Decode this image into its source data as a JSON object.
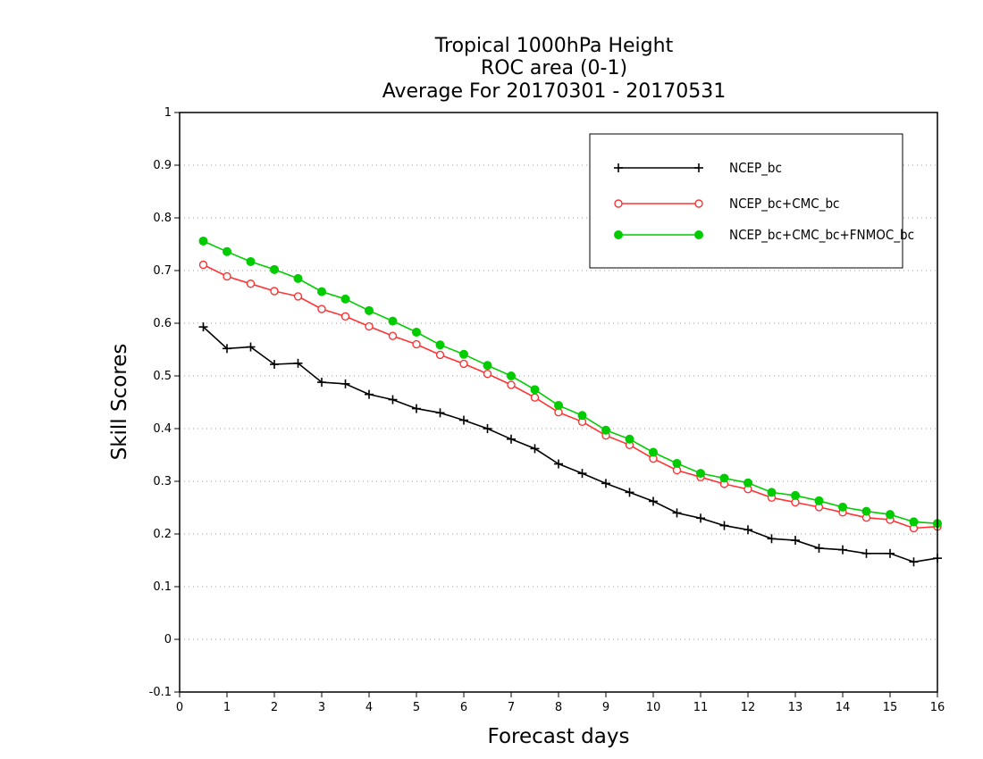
{
  "chart_data": {
    "type": "line",
    "title_lines": [
      "Tropical 1000hPa Height",
      "ROC area (0-1)",
      "Average For 20170301 - 20170531"
    ],
    "xlabel": "Forecast days",
    "ylabel": "Skill Scores",
    "xlim": [
      0,
      16
    ],
    "ylim": [
      -0.1,
      1
    ],
    "x_ticks": [
      0,
      1,
      2,
      3,
      4,
      5,
      6,
      7,
      8,
      9,
      10,
      11,
      12,
      13,
      14,
      15,
      16
    ],
    "y_ticks": [
      -0.1,
      0,
      0.1,
      0.2,
      0.3,
      0.4,
      0.5,
      0.6,
      0.7,
      0.8,
      0.9,
      1
    ],
    "y_tick_labels": [
      "-0.1",
      "0",
      "0.1",
      "0.2",
      "0.3",
      "0.4",
      "0.5",
      "0.6",
      "0.7",
      "0.8",
      "0.9",
      "1"
    ],
    "grid": "horizontal dotted",
    "legend_position": "top-right",
    "x": [
      0.5,
      1,
      1.5,
      2,
      2.5,
      3,
      3.5,
      4,
      4.5,
      5,
      5.5,
      6,
      6.5,
      7,
      7.5,
      8,
      8.5,
      9,
      9.5,
      10,
      10.5,
      11,
      11.5,
      12,
      12.5,
      13,
      13.5,
      14,
      14.5,
      15,
      15.5,
      16
    ],
    "series": [
      {
        "name": "NCEP_bc",
        "color": "#000000",
        "marker": "plus",
        "values": [
          0.593,
          0.552,
          0.555,
          0.522,
          0.524,
          0.488,
          0.485,
          0.465,
          0.455,
          0.438,
          0.43,
          0.416,
          0.4,
          0.38,
          0.362,
          0.333,
          0.315,
          0.296,
          0.279,
          0.262,
          0.24,
          0.23,
          0.216,
          0.208,
          0.191,
          0.188,
          0.173,
          0.17,
          0.163,
          0.163,
          0.147,
          0.154
        ]
      },
      {
        "name": "NCEP_bc+CMC_bc",
        "color": "#ff3333",
        "marker": "open-circle",
        "values": [
          0.711,
          0.689,
          0.675,
          0.661,
          0.651,
          0.627,
          0.613,
          0.594,
          0.576,
          0.56,
          0.54,
          0.523,
          0.504,
          0.483,
          0.459,
          0.431,
          0.413,
          0.387,
          0.369,
          0.343,
          0.321,
          0.308,
          0.295,
          0.285,
          0.269,
          0.26,
          0.251,
          0.241,
          0.231,
          0.227,
          0.211,
          0.214
        ]
      },
      {
        "name": "NCEP_bc+CMC_bc+FNMOC_bc",
        "color": "#00cc00",
        "marker": "filled-circle",
        "values": [
          0.756,
          0.736,
          0.717,
          0.702,
          0.685,
          0.66,
          0.646,
          0.624,
          0.604,
          0.583,
          0.559,
          0.541,
          0.52,
          0.5,
          0.474,
          0.444,
          0.425,
          0.397,
          0.38,
          0.355,
          0.334,
          0.315,
          0.306,
          0.297,
          0.279,
          0.273,
          0.263,
          0.251,
          0.243,
          0.237,
          0.223,
          0.22
        ]
      }
    ]
  }
}
